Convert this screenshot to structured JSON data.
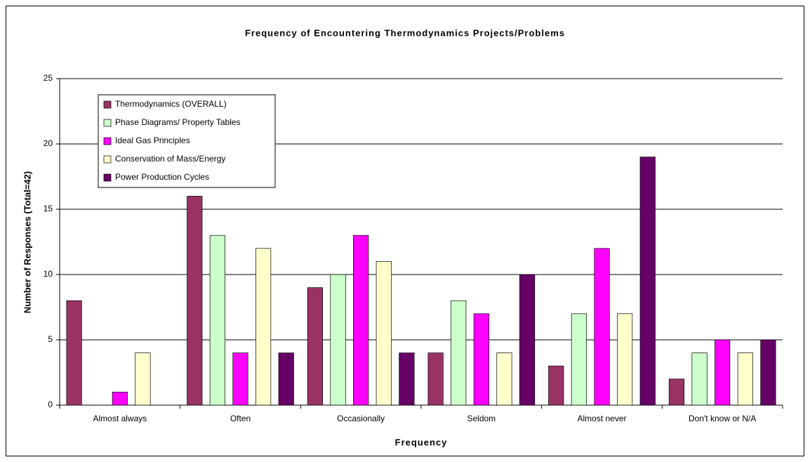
{
  "chart_data": {
    "type": "bar",
    "title": "Frequency of Encountering Thermodynamics Projects/Problems",
    "x_label": "Frequency",
    "y_label": "Number of Responses (Total=42)",
    "categories": [
      "Almost always",
      "Often",
      "Occasionally",
      "Seldom",
      "Almost never",
      "Don't know or N/A"
    ],
    "series": [
      {
        "name": "Thermodynamics (OVERALL)",
        "color": "#993366",
        "values": [
          8,
          16,
          9,
          4,
          3,
          2
        ]
      },
      {
        "name": "Phase Diagrams/ Property Tables",
        "color": "#ccffcc",
        "values": [
          0,
          13,
          10,
          8,
          7,
          4
        ]
      },
      {
        "name": "Ideal Gas Principles",
        "color": "#ff00ff",
        "values": [
          1,
          4,
          13,
          7,
          12,
          5
        ]
      },
      {
        "name": "Conservation of Mass/Energy",
        "color": "#ffffcc",
        "values": [
          4,
          12,
          11,
          4,
          7,
          4
        ]
      },
      {
        "name": "Power Production Cycles",
        "color": "#660066",
        "values": [
          0,
          4,
          4,
          10,
          19,
          5
        ]
      }
    ],
    "ylim": [
      0,
      25
    ],
    "yticks": [
      0,
      5,
      10,
      15,
      20,
      25
    ],
    "grid": true,
    "legend": "upper left"
  }
}
